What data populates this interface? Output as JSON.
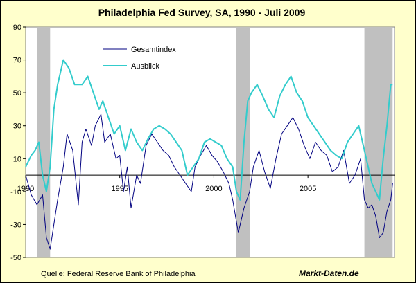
{
  "chart_data": {
    "type": "line",
    "title": "Philadelphia Fed Survey, SA, 1990 - Juli 2009",
    "xlabel": "",
    "ylabel": "",
    "xlim": [
      1990.0,
      2009.6
    ],
    "ylim": [
      -50,
      90
    ],
    "y_ticks": [
      -50,
      -30,
      -10,
      10,
      30,
      50,
      70,
      90
    ],
    "x_ticks": [
      1990,
      1995,
      2000,
      2005
    ],
    "grid": false,
    "legend_position": "top-left",
    "colors": {
      "background": "#FFFFCC",
      "plot_background": "#FFFFFF",
      "recession": "#C0C0C0",
      "Gesamtindex": "#000080",
      "Ausblick": "#33CCCC",
      "zero_line": "#000000"
    },
    "recessions": [
      {
        "start": 1990.6,
        "end": 1991.3
      },
      {
        "start": 2001.2,
        "end": 2001.9
      },
      {
        "start": 2008.0,
        "end": 2009.5
      }
    ],
    "series": [
      {
        "name": "Gesamtindex",
        "x": [
          1990.0,
          1990.3,
          1990.6,
          1990.9,
          1991.1,
          1991.3,
          1991.5,
          1991.7,
          1992.0,
          1992.2,
          1992.5,
          1992.8,
          1993.0,
          1993.2,
          1993.5,
          1993.7,
          1994.0,
          1994.2,
          1994.5,
          1994.8,
          1995.0,
          1995.2,
          1995.4,
          1995.6,
          1995.9,
          1996.1,
          1996.4,
          1996.7,
          1997.0,
          1997.3,
          1997.6,
          1997.9,
          1998.2,
          1998.5,
          1998.8,
          1999.0,
          1999.3,
          1999.6,
          1999.9,
          2000.2,
          2000.5,
          2000.8,
          2001.0,
          2001.3,
          2001.6,
          2001.9,
          2002.1,
          2002.4,
          2002.7,
          2003.0,
          2003.3,
          2003.6,
          2003.9,
          2004.2,
          2004.5,
          2004.8,
          2005.1,
          2005.4,
          2005.7,
          2006.0,
          2006.3,
          2006.6,
          2006.9,
          2007.2,
          2007.5,
          2007.8,
          2008.0,
          2008.2,
          2008.4,
          2008.6,
          2008.8,
          2009.0,
          2009.2,
          2009.4,
          2009.5
        ],
        "values": [
          0,
          -12,
          -18,
          -12,
          -38,
          -45,
          -30,
          -15,
          5,
          25,
          15,
          -18,
          20,
          28,
          18,
          30,
          37,
          20,
          25,
          10,
          12,
          -10,
          5,
          -20,
          0,
          -5,
          18,
          25,
          20,
          15,
          12,
          5,
          0,
          -5,
          -10,
          5,
          12,
          18,
          12,
          8,
          2,
          -5,
          -15,
          -35,
          -20,
          -10,
          5,
          15,
          2,
          -8,
          10,
          25,
          30,
          35,
          28,
          18,
          10,
          20,
          15,
          12,
          2,
          5,
          15,
          -5,
          0,
          10,
          -15,
          -20,
          -18,
          -25,
          -38,
          -35,
          -22,
          -15,
          -5
        ]
      },
      {
        "name": "Ausblick",
        "x": [
          1990.0,
          1990.3,
          1990.5,
          1990.7,
          1990.9,
          1991.1,
          1991.3,
          1991.5,
          1991.7,
          1992.0,
          1992.3,
          1992.6,
          1993.0,
          1993.3,
          1993.6,
          1993.9,
          1994.1,
          1994.4,
          1994.7,
          1995.0,
          1995.3,
          1995.6,
          1995.9,
          1996.2,
          1996.5,
          1996.8,
          1997.1,
          1997.4,
          1997.7,
          1998.0,
          1998.3,
          1998.6,
          1998.9,
          1999.2,
          1999.5,
          1999.8,
          2000.1,
          2000.4,
          2000.7,
          2001.0,
          2001.2,
          2001.4,
          2001.6,
          2001.8,
          2002.0,
          2002.3,
          2002.6,
          2002.9,
          2003.2,
          2003.5,
          2003.8,
          2004.1,
          2004.4,
          2004.7,
          2005.0,
          2005.3,
          2005.6,
          2005.9,
          2006.2,
          2006.5,
          2006.8,
          2007.1,
          2007.4,
          2007.7,
          2008.0,
          2008.2,
          2008.4,
          2008.6,
          2008.8,
          2009.0,
          2009.2,
          2009.4,
          2009.5
        ],
        "values": [
          5,
          12,
          15,
          20,
          0,
          -10,
          5,
          40,
          55,
          70,
          65,
          55,
          55,
          60,
          50,
          40,
          45,
          35,
          25,
          30,
          15,
          28,
          20,
          15,
          22,
          28,
          30,
          28,
          25,
          20,
          15,
          0,
          5,
          10,
          20,
          22,
          20,
          18,
          10,
          5,
          -10,
          -15,
          20,
          45,
          50,
          55,
          48,
          40,
          35,
          48,
          55,
          60,
          50,
          45,
          35,
          30,
          25,
          20,
          15,
          12,
          10,
          20,
          25,
          30,
          15,
          5,
          -5,
          -10,
          -15,
          10,
          30,
          55,
          55
        ]
      }
    ]
  },
  "footer": {
    "source": "Quelle: Federal Reserve Bank of Philadelphia",
    "brand": "Markt-Daten.de"
  }
}
